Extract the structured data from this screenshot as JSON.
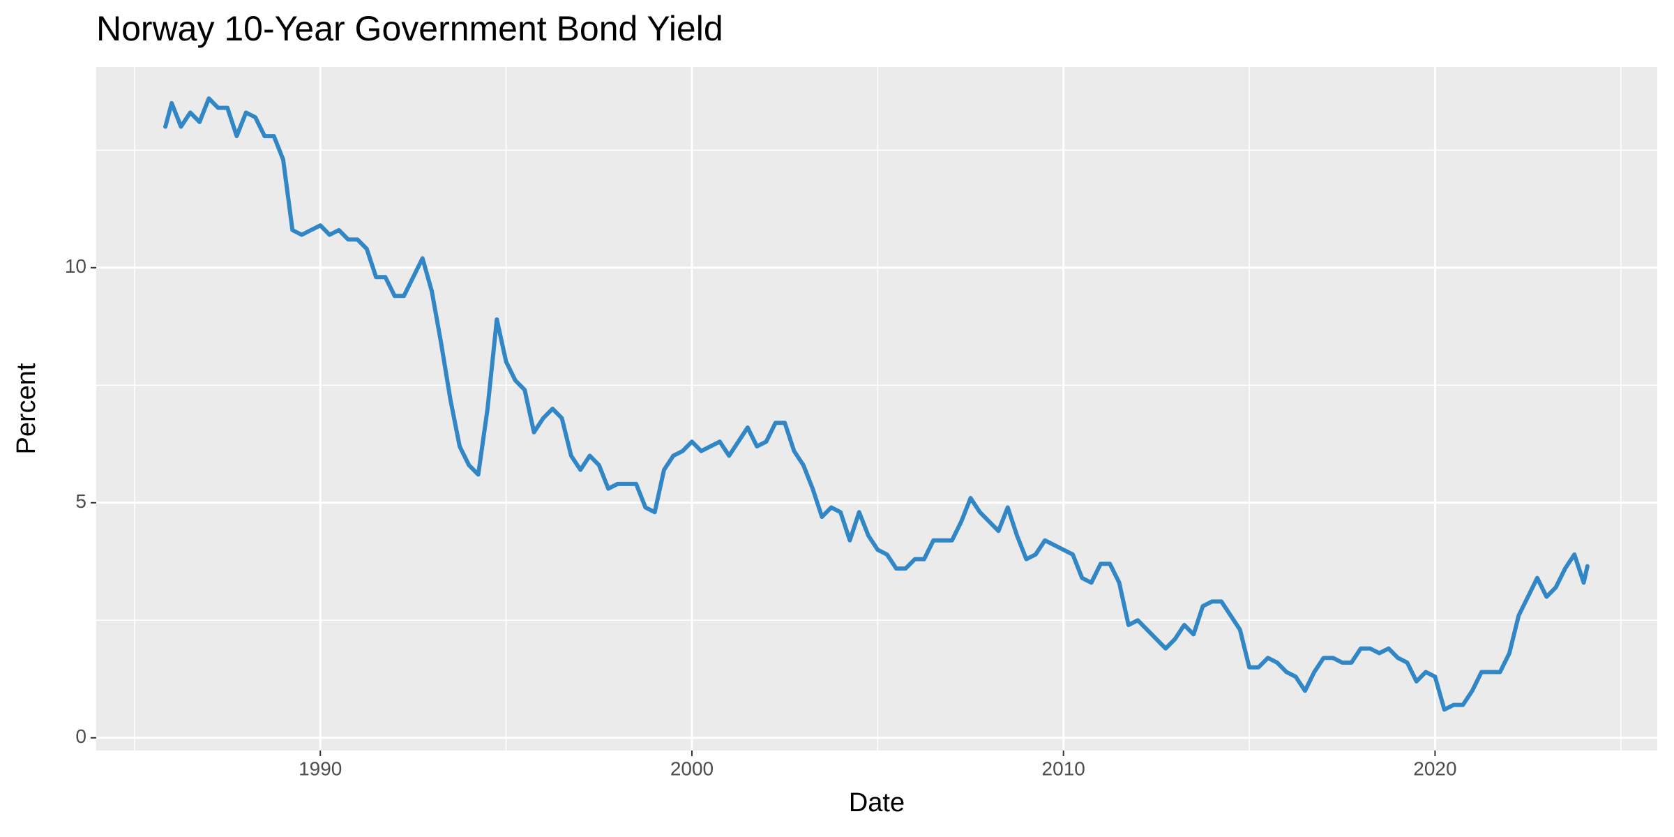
{
  "chart_data": {
    "type": "line",
    "title": "Norway 10-Year Government Bond Yield",
    "x_label": "Date",
    "y_label": "Percent",
    "color": "#3187c6",
    "grid": true,
    "xlim": [
      1983.97,
      2025.98
    ],
    "ylim": [
      -0.27,
      14.27
    ],
    "xticks": [
      1990,
      2000,
      2010,
      2020
    ],
    "yticks": [
      0,
      5,
      10
    ],
    "x_minor_ticks": [
      1985,
      1995,
      2005,
      2015,
      2025
    ],
    "y_minor_ticks": [
      2.5,
      7.5,
      12.5
    ],
    "x": [
      1985.83,
      1986,
      1986.25,
      1986.5,
      1986.75,
      1987,
      1987.25,
      1987.5,
      1987.75,
      1988,
      1988.25,
      1988.5,
      1988.75,
      1989,
      1989.25,
      1989.5,
      1989.75,
      1990,
      1990.25,
      1990.5,
      1990.75,
      1991,
      1991.25,
      1991.5,
      1991.75,
      1992,
      1992.25,
      1992.5,
      1992.75,
      1993,
      1993.25,
      1993.5,
      1993.75,
      1994,
      1994.25,
      1994.5,
      1994.75,
      1995,
      1995.25,
      1995.5,
      1995.75,
      1996,
      1996.25,
      1996.5,
      1996.75,
      1997,
      1997.25,
      1997.5,
      1997.75,
      1998,
      1998.25,
      1998.5,
      1998.75,
      1999,
      1999.25,
      1999.5,
      1999.75,
      2000,
      2000.25,
      2000.5,
      2000.75,
      2001,
      2001.25,
      2001.5,
      2001.75,
      2002,
      2002.25,
      2002.5,
      2002.75,
      2003,
      2003.25,
      2003.5,
      2003.75,
      2004,
      2004.25,
      2004.5,
      2004.75,
      2005,
      2005.25,
      2005.5,
      2005.75,
      2006,
      2006.25,
      2006.5,
      2006.75,
      2007,
      2007.25,
      2007.5,
      2007.75,
      2008,
      2008.25,
      2008.5,
      2008.75,
      2009,
      2009.25,
      2009.5,
      2009.75,
      2010,
      2010.25,
      2010.5,
      2010.75,
      2011,
      2011.25,
      2011.5,
      2011.75,
      2012,
      2012.25,
      2012.5,
      2012.75,
      2013,
      2013.25,
      2013.5,
      2013.75,
      2014,
      2014.25,
      2014.5,
      2014.75,
      2015,
      2015.25,
      2015.5,
      2015.75,
      2016,
      2016.25,
      2016.5,
      2016.75,
      2017,
      2017.25,
      2017.5,
      2017.75,
      2018,
      2018.25,
      2018.5,
      2018.75,
      2019,
      2019.25,
      2019.5,
      2019.75,
      2020,
      2020.25,
      2020.5,
      2020.75,
      2021,
      2021.25,
      2021.5,
      2021.75,
      2022,
      2022.25,
      2022.5,
      2022.75,
      2023,
      2023.25,
      2023.5,
      2023.75,
      2024,
      2024.1
    ],
    "values": [
      13.0,
      13.5,
      13.0,
      13.3,
      13.1,
      13.6,
      13.4,
      13.4,
      12.8,
      13.3,
      13.2,
      12.8,
      12.8,
      12.3,
      10.8,
      10.7,
      10.8,
      10.9,
      10.7,
      10.8,
      10.6,
      10.6,
      10.4,
      9.8,
      9.8,
      9.4,
      9.4,
      9.8,
      10.2,
      9.5,
      8.4,
      7.2,
      6.2,
      5.8,
      5.6,
      7.0,
      8.9,
      8.0,
      7.6,
      7.4,
      6.5,
      6.8,
      7.0,
      6.8,
      6.0,
      5.7,
      6.0,
      5.8,
      5.3,
      5.4,
      5.4,
      5.4,
      4.9,
      4.8,
      5.7,
      6.0,
      6.1,
      6.3,
      6.1,
      6.2,
      6.3,
      6.0,
      6.3,
      6.6,
      6.2,
      6.3,
      6.7,
      6.7,
      6.1,
      5.8,
      5.3,
      4.7,
      4.9,
      4.8,
      4.2,
      4.8,
      4.3,
      4.0,
      3.9,
      3.6,
      3.6,
      3.8,
      3.8,
      4.2,
      4.2,
      4.2,
      4.6,
      5.1,
      4.8,
      4.6,
      4.4,
      4.9,
      4.3,
      3.8,
      3.9,
      4.2,
      4.1,
      4.0,
      3.9,
      3.4,
      3.3,
      3.7,
      3.7,
      3.3,
      2.4,
      2.5,
      2.3,
      2.1,
      1.9,
      2.1,
      2.4,
      2.2,
      2.8,
      2.9,
      2.9,
      2.6,
      2.3,
      1.5,
      1.5,
      1.7,
      1.6,
      1.4,
      1.3,
      1.0,
      1.4,
      1.7,
      1.7,
      1.6,
      1.6,
      1.9,
      1.9,
      1.8,
      1.9,
      1.7,
      1.6,
      1.2,
      1.4,
      1.3,
      0.6,
      0.7,
      0.7,
      1.0,
      1.4,
      1.4,
      1.4,
      1.8,
      2.6,
      3.0,
      3.4,
      3.0,
      3.2,
      3.6,
      3.9,
      3.3,
      3.65
    ]
  }
}
